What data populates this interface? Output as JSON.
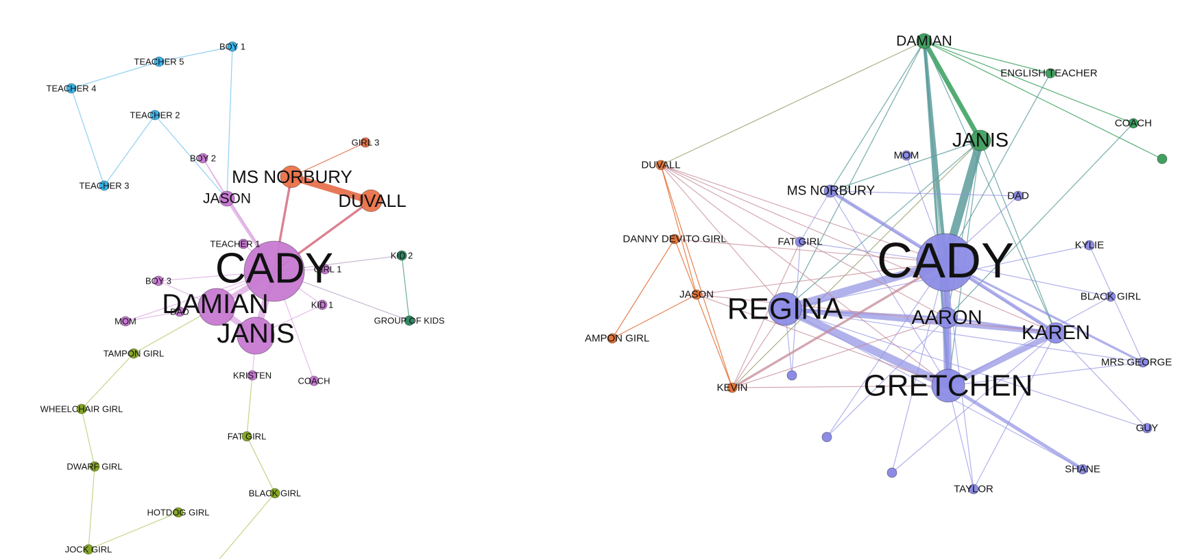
{
  "colors": {
    "teacher": "#3ab4ea",
    "cady": "#c77ad2",
    "norbury": "#ea7248",
    "kids": "#2f8a63",
    "girls": "#86a825",
    "right_main": "#8c8ce6",
    "right_top": "#40a060",
    "right_orange": "#e5763a"
  },
  "left_network": {
    "nodes": [
      {
        "id": "L_BOY1",
        "label": "BOY 1",
        "group": "teacher",
        "weight": 1
      },
      {
        "id": "L_T5",
        "label": "TEACHER 5",
        "group": "teacher",
        "weight": 1
      },
      {
        "id": "L_T4",
        "label": "TEACHER 4",
        "group": "teacher",
        "weight": 1
      },
      {
        "id": "L_T2",
        "label": "TEACHER 2",
        "group": "teacher",
        "weight": 1
      },
      {
        "id": "L_T3",
        "label": "TEACHER 3",
        "group": "teacher",
        "weight": 1
      },
      {
        "id": "L_BOY2",
        "label": "BOY 2",
        "group": "cady",
        "weight": 1
      },
      {
        "id": "L_GIRL3",
        "label": "GIRL 3",
        "group": "norbury",
        "weight": 1
      },
      {
        "id": "L_NORB",
        "label": "MS NORBURY",
        "group": "norbury",
        "weight": 4
      },
      {
        "id": "L_DUV",
        "label": "DUVALL",
        "group": "norbury",
        "weight": 4
      },
      {
        "id": "L_JASON",
        "label": "JASON",
        "group": "cady",
        "weight": 3
      },
      {
        "id": "L_T1",
        "label": "TEACHER 1",
        "group": "cady",
        "weight": 1
      },
      {
        "id": "L_CADY",
        "label": "CADY",
        "group": "cady",
        "weight": 10
      },
      {
        "id": "L_GIRL1",
        "label": "GIRL 1",
        "group": "cady",
        "weight": 1
      },
      {
        "id": "L_KID2",
        "label": "KID 2",
        "group": "kids",
        "weight": 1
      },
      {
        "id": "L_BOY3",
        "label": "BOY 3",
        "group": "cady",
        "weight": 1
      },
      {
        "id": "L_DAMIAN",
        "label": "DAMIAN",
        "group": "cady",
        "weight": 6
      },
      {
        "id": "L_DAD",
        "label": "DAD",
        "group": "cady",
        "weight": 1
      },
      {
        "id": "L_KID1",
        "label": "KID 1",
        "group": "cady",
        "weight": 1
      },
      {
        "id": "L_MOM",
        "label": "MOM",
        "group": "cady",
        "weight": 1
      },
      {
        "id": "L_GOK",
        "label": "GROUP OF KIDS",
        "group": "kids",
        "weight": 1
      },
      {
        "id": "L_JANIS",
        "label": "JANIS",
        "group": "cady",
        "weight": 6
      },
      {
        "id": "L_TAMPON",
        "label": "TAMPON GIRL",
        "group": "girls",
        "weight": 1
      },
      {
        "id": "L_KRISTEN",
        "label": "KRISTEN",
        "group": "cady",
        "weight": 1
      },
      {
        "id": "L_COACH",
        "label": "COACH",
        "group": "cady",
        "weight": 1
      },
      {
        "id": "L_WHEEL",
        "label": "WHEELCHAIR GIRL",
        "group": "girls",
        "weight": 1
      },
      {
        "id": "L_FAT",
        "label": "FAT GIRL",
        "group": "girls",
        "weight": 1
      },
      {
        "id": "L_DWARF",
        "label": "DWARF GIRL",
        "group": "girls",
        "weight": 1
      },
      {
        "id": "L_BLACK",
        "label": "BLACK GIRL",
        "group": "girls",
        "weight": 1
      },
      {
        "id": "L_HOTDOG",
        "label": "HOTDOG GIRL",
        "group": "girls",
        "weight": 1
      },
      {
        "id": "L_JOCK",
        "label": "JOCK GIRL",
        "group": "girls",
        "weight": 1
      }
    ],
    "edges": [
      {
        "s": "L_BOY1",
        "t": "L_T5",
        "w": 1,
        "group": "teacher"
      },
      {
        "s": "L_T5",
        "t": "L_T4",
        "w": 1,
        "group": "teacher"
      },
      {
        "s": "L_T4",
        "t": "L_T3",
        "w": 1,
        "group": "teacher"
      },
      {
        "s": "L_T3",
        "t": "L_T2",
        "w": 1,
        "group": "teacher"
      },
      {
        "s": "L_T2",
        "t": "L_JASON",
        "w": 1,
        "group": "teacher"
      },
      {
        "s": "L_BOY1",
        "t": "L_JASON",
        "w": 1,
        "group": "teacher"
      },
      {
        "s": "L_BOY2",
        "t": "L_JASON",
        "w": 1,
        "group": "cady"
      },
      {
        "s": "L_BOY2",
        "t": "L_CADY",
        "w": 1,
        "group": "cady"
      },
      {
        "s": "L_JASON",
        "t": "L_CADY",
        "w": 3,
        "group": "cady"
      },
      {
        "s": "L_T1",
        "t": "L_CADY",
        "w": 1,
        "group": "cady"
      },
      {
        "s": "L_GIRL3",
        "t": "L_NORB",
        "w": 1,
        "group": "norbury"
      },
      {
        "s": "L_NORB",
        "t": "L_DUV",
        "w": 6,
        "group": "norbury"
      },
      {
        "s": "L_NORB",
        "t": "L_CADY",
        "w": 2,
        "group": "norbury_cady"
      },
      {
        "s": "L_DUV",
        "t": "L_CADY",
        "w": 2,
        "group": "norbury_cady"
      },
      {
        "s": "L_CADY",
        "t": "L_GIRL1",
        "w": 1,
        "group": "cady"
      },
      {
        "s": "L_CADY",
        "t": "L_KID2",
        "w": 1,
        "group": "kids_cady"
      },
      {
        "s": "L_CADY",
        "t": "L_GOK",
        "w": 1,
        "group": "kids_cady"
      },
      {
        "s": "L_KID2",
        "t": "L_GOK",
        "w": 1,
        "group": "kids"
      },
      {
        "s": "L_CADY",
        "t": "L_KID1",
        "w": 1,
        "group": "cady"
      },
      {
        "s": "L_BOY3",
        "t": "L_CADY",
        "w": 1,
        "group": "cady"
      },
      {
        "s": "L_BOY3",
        "t": "L_DAMIAN",
        "w": 1,
        "group": "cady"
      },
      {
        "s": "L_DAMIAN",
        "t": "L_CADY",
        "w": 5,
        "group": "cady"
      },
      {
        "s": "L_JANIS",
        "t": "L_CADY",
        "w": 6,
        "group": "cady"
      },
      {
        "s": "L_DAMIAN",
        "t": "L_JANIS",
        "w": 5,
        "group": "cady"
      },
      {
        "s": "L_DAD",
        "t": "L_CADY",
        "w": 1,
        "group": "cady"
      },
      {
        "s": "L_MOM",
        "t": "L_DAD",
        "w": 1,
        "group": "cady"
      },
      {
        "s": "L_MOM",
        "t": "L_CADY",
        "w": 1,
        "group": "cady"
      },
      {
        "s": "L_JANIS",
        "t": "L_KRISTEN",
        "w": 1,
        "group": "cady"
      },
      {
        "s": "L_CADY",
        "t": "L_COACH",
        "w": 1,
        "group": "cady"
      },
      {
        "s": "L_JANIS",
        "t": "L_KID1",
        "w": 1,
        "group": "cady"
      },
      {
        "s": "L_TAMPON",
        "t": "L_DAMIAN",
        "w": 1,
        "group": "girls"
      },
      {
        "s": "L_TAMPON",
        "t": "L_WHEEL",
        "w": 1,
        "group": "girls"
      },
      {
        "s": "L_WHEEL",
        "t": "L_DWARF",
        "w": 1,
        "group": "girls"
      },
      {
        "s": "L_DWARF",
        "t": "L_JOCK",
        "w": 1,
        "group": "girls"
      },
      {
        "s": "L_JOCK",
        "t": "L_HOTDOG",
        "w": 1,
        "group": "girls"
      },
      {
        "s": "L_KRISTEN",
        "t": "L_FAT",
        "w": 1,
        "group": "girls"
      },
      {
        "s": "L_FAT",
        "t": "L_BLACK",
        "w": 1,
        "group": "girls"
      },
      {
        "s": "L_BLACK",
        "t": "L_OFF",
        "w": 1,
        "group": "girls"
      }
    ]
  },
  "right_network": {
    "nodes": [
      {
        "id": "R_DAMIAN",
        "label": "DAMIAN",
        "group": "right_top",
        "weight": 3
      },
      {
        "id": "R_ENG",
        "label": "ENGLISH TEACHER",
        "group": "right_top",
        "weight": 1
      },
      {
        "id": "R_COACH",
        "label": "COACH",
        "group": "right_top",
        "weight": 1
      },
      {
        "id": "R_GREEN",
        "label": "",
        "group": "right_top",
        "weight": 1
      },
      {
        "id": "R_JANIS",
        "label": "JANIS",
        "group": "right_top",
        "weight": 4
      },
      {
        "id": "R_MOM",
        "label": "MOM",
        "group": "right_main",
        "weight": 1
      },
      {
        "id": "R_DUV",
        "label": "DUVALL",
        "group": "right_orange",
        "weight": 1
      },
      {
        "id": "R_NORB",
        "label": "MS NORBURY",
        "group": "right_main",
        "weight": 2
      },
      {
        "id": "R_DAD",
        "label": "DAD",
        "group": "right_main",
        "weight": 1
      },
      {
        "id": "R_DDG",
        "label": "DANNY DEVITO GIRL",
        "group": "right_orange",
        "weight": 1
      },
      {
        "id": "R_FAT",
        "label": "FAT GIRL",
        "group": "right_main",
        "weight": 1
      },
      {
        "id": "R_CADY",
        "label": "CADY",
        "group": "right_main",
        "weight": 10
      },
      {
        "id": "R_KYLIE",
        "label": "KYLIE",
        "group": "right_main",
        "weight": 1
      },
      {
        "id": "R_JASON",
        "label": "JASON",
        "group": "right_orange",
        "weight": 1
      },
      {
        "id": "R_BLACK",
        "label": "BLACK GIRL",
        "group": "right_main",
        "weight": 1
      },
      {
        "id": "R_REGINA",
        "label": "REGINA",
        "group": "right_main",
        "weight": 6
      },
      {
        "id": "R_AARON",
        "label": "AARON",
        "group": "right_main",
        "weight": 4
      },
      {
        "id": "R_KAREN",
        "label": "KAREN",
        "group": "right_main",
        "weight": 4
      },
      {
        "id": "R_TAMPON",
        "label": "AMPON GIRL",
        "group": "right_orange",
        "weight": 1
      },
      {
        "id": "R_MRSG",
        "label": "MRS GEORGE",
        "group": "right_main",
        "weight": 1
      },
      {
        "id": "R_U1",
        "label": "",
        "group": "right_main",
        "weight": 1
      },
      {
        "id": "R_KEVIN",
        "label": "KEVIN",
        "group": "right_orange",
        "weight": 1
      },
      {
        "id": "R_GRETCHEN",
        "label": "GRETCHEN",
        "group": "right_main",
        "weight": 6
      },
      {
        "id": "R_U2",
        "label": "",
        "group": "right_main",
        "weight": 1
      },
      {
        "id": "R_GUY",
        "label": "GUY",
        "group": "right_main",
        "weight": 1
      },
      {
        "id": "R_U3",
        "label": "",
        "group": "right_main",
        "weight": 1
      },
      {
        "id": "R_SHANE",
        "label": "SHANE",
        "group": "right_main",
        "weight": 1
      },
      {
        "id": "R_TAYLOR",
        "label": "TAYLOR",
        "group": "right_main",
        "weight": 1
      }
    ],
    "edges": [
      {
        "s": "R_DAMIAN",
        "t": "R_ENG",
        "w": 1,
        "group": "right_top"
      },
      {
        "s": "R_DAMIAN",
        "t": "R_COACH",
        "w": 1,
        "group": "right_top"
      },
      {
        "s": "R_DAMIAN",
        "t": "R_GREEN",
        "w": 1,
        "group": "right_top"
      },
      {
        "s": "R_DAMIAN",
        "t": "R_JANIS",
        "w": 4,
        "group": "right_top"
      },
      {
        "s": "R_DAMIAN",
        "t": "R_CADY",
        "w": 3,
        "group": "teal"
      },
      {
        "s": "R_DAMIAN",
        "t": "R_DUV",
        "w": 1,
        "group": "olive"
      },
      {
        "s": "R_DAMIAN",
        "t": "R_NORB",
        "w": 1,
        "group": "teal"
      },
      {
        "s": "R_DAMIAN",
        "t": "R_REGINA",
        "w": 1,
        "group": "teal"
      },
      {
        "s": "R_DAMIAN",
        "t": "R_AARON",
        "w": 1,
        "group": "teal"
      },
      {
        "s": "R_DAMIAN",
        "t": "R_GRETCHEN",
        "w": 2,
        "group": "teal"
      },
      {
        "s": "R_DAMIAN",
        "t": "R_KAREN",
        "w": 1,
        "group": "teal"
      },
      {
        "s": "R_JANIS",
        "t": "R_CADY",
        "w": 7,
        "group": "teal"
      },
      {
        "s": "R_JANIS",
        "t": "R_NORB",
        "w": 1,
        "group": "teal"
      },
      {
        "s": "R_JANIS",
        "t": "R_KEVIN",
        "w": 1,
        "group": "olive"
      },
      {
        "s": "R_JANIS",
        "t": "R_REGINA",
        "w": 1,
        "group": "teal"
      },
      {
        "s": "R_JANIS",
        "t": "R_AARON",
        "w": 1,
        "group": "teal"
      },
      {
        "s": "R_JANIS",
        "t": "R_KAREN",
        "w": 1,
        "group": "teal"
      },
      {
        "s": "R_JANIS",
        "t": "R_GRETCHEN",
        "w": 1,
        "group": "teal"
      },
      {
        "s": "R_ENG",
        "t": "R_CADY",
        "w": 1,
        "group": "teal"
      },
      {
        "s": "R_COACH",
        "t": "R_AARON",
        "w": 1,
        "group": "teal"
      },
      {
        "s": "R_MOM",
        "t": "R_CADY",
        "w": 1,
        "group": "right_main"
      },
      {
        "s": "R_DAD",
        "t": "R_CADY",
        "w": 1,
        "group": "right_main"
      },
      {
        "s": "R_NORB",
        "t": "R_DAD",
        "w": 1,
        "group": "right_main"
      },
      {
        "s": "R_NORB",
        "t": "R_CADY",
        "w": 3,
        "group": "right_main"
      },
      {
        "s": "R_NORB",
        "t": "R_GRETCHEN",
        "w": 1,
        "group": "right_main"
      },
      {
        "s": "R_NORB",
        "t": "R_KAREN",
        "w": 1,
        "group": "right_main"
      },
      {
        "s": "R_NORB",
        "t": "R_FAT",
        "w": 1,
        "group": "right_main"
      },
      {
        "s": "R_FAT",
        "t": "R_CADY",
        "w": 1,
        "group": "right_main"
      },
      {
        "s": "R_FAT",
        "t": "R_U1",
        "w": 1,
        "group": "right_main"
      },
      {
        "s": "R_KYLIE",
        "t": "R_REGINA",
        "w": 1,
        "group": "right_main"
      },
      {
        "s": "R_KYLIE",
        "t": "R_MRSG",
        "w": 1,
        "group": "right_main"
      },
      {
        "s": "R_BLACK",
        "t": "R_CADY",
        "w": 1,
        "group": "right_main"
      },
      {
        "s": "R_BLACK",
        "t": "R_GRETCHEN",
        "w": 1,
        "group": "right_main"
      },
      {
        "s": "R_CADY",
        "t": "R_REGINA",
        "w": 7,
        "group": "right_main"
      },
      {
        "s": "R_CADY",
        "t": "R_AARON",
        "w": 4,
        "group": "right_main"
      },
      {
        "s": "R_CADY",
        "t": "R_KAREN",
        "w": 3,
        "group": "right_main"
      },
      {
        "s": "R_CADY",
        "t": "R_GRETCHEN",
        "w": 7,
        "group": "right_main"
      },
      {
        "s": "R_CADY",
        "t": "R_MRSG",
        "w": 2,
        "group": "right_main"
      },
      {
        "s": "R_CADY",
        "t": "R_U2",
        "w": 1,
        "group": "right_main"
      },
      {
        "s": "R_CADY",
        "t": "R_U3",
        "w": 1,
        "group": "right_main"
      },
      {
        "s": "R_CADY",
        "t": "R_TAYLOR",
        "w": 1,
        "group": "right_main"
      },
      {
        "s": "R_REGINA",
        "t": "R_GRETCHEN",
        "w": 7,
        "group": "right_main"
      },
      {
        "s": "R_REGINA",
        "t": "R_KAREN",
        "w": 4,
        "group": "right_main"
      },
      {
        "s": "R_REGINA",
        "t": "R_AARON",
        "w": 2,
        "group": "right_main"
      },
      {
        "s": "R_REGINA",
        "t": "R_MRSG",
        "w": 1,
        "group": "right_main"
      },
      {
        "s": "R_REGINA",
        "t": "R_GUY",
        "w": 1,
        "group": "right_main"
      },
      {
        "s": "R_REGINA",
        "t": "R_SHANE",
        "w": 1,
        "group": "right_main"
      },
      {
        "s": "R_REGINA",
        "t": "R_U1",
        "w": 1,
        "group": "right_main"
      },
      {
        "s": "R_GRETCHEN",
        "t": "R_KAREN",
        "w": 5,
        "group": "right_main"
      },
      {
        "s": "R_GRETCHEN",
        "t": "R_SHANE",
        "w": 3,
        "group": "right_main"
      },
      {
        "s": "R_GRETCHEN",
        "t": "R_MRSG",
        "w": 1,
        "group": "right_main"
      },
      {
        "s": "R_GRETCHEN",
        "t": "R_TAYLOR",
        "w": 1,
        "group": "right_main"
      },
      {
        "s": "R_KAREN",
        "t": "R_GUY",
        "w": 1,
        "group": "right_main"
      },
      {
        "s": "R_KAREN",
        "t": "R_TAYLOR",
        "w": 1,
        "group": "right_main"
      },
      {
        "s": "R_AARON",
        "t": "R_GRETCHEN",
        "w": 3,
        "group": "right_main"
      },
      {
        "s": "R_AARON",
        "t": "R_KAREN",
        "w": 2,
        "group": "right_main"
      },
      {
        "s": "R_AARON",
        "t": "R_U2",
        "w": 1,
        "group": "right_main"
      },
      {
        "s": "R_KAREN",
        "t": "R_U3",
        "w": 1,
        "group": "right_main"
      },
      {
        "s": "R_DUV",
        "t": "R_CADY",
        "w": 1,
        "group": "mauve"
      },
      {
        "s": "R_DUV",
        "t": "R_REGINA",
        "w": 1,
        "group": "mauve"
      },
      {
        "s": "R_DUV",
        "t": "R_AARON",
        "w": 1,
        "group": "mauve"
      },
      {
        "s": "R_DUV",
        "t": "R_GRETCHEN",
        "w": 1,
        "group": "mauve"
      },
      {
        "s": "R_DUV",
        "t": "R_KAREN",
        "w": 1,
        "group": "mauve"
      },
      {
        "s": "R_DUV",
        "t": "R_JASON",
        "w": 1,
        "group": "right_orange"
      },
      {
        "s": "R_DUV",
        "t": "R_KEVIN",
        "w": 1,
        "group": "right_orange"
      },
      {
        "s": "R_DDG",
        "t": "R_CADY",
        "w": 1,
        "group": "mauve"
      },
      {
        "s": "R_DDG",
        "t": "R_TAMPON",
        "w": 1,
        "group": "right_orange"
      },
      {
        "s": "R_DDG",
        "t": "R_KEVIN",
        "w": 1,
        "group": "right_orange"
      },
      {
        "s": "R_JASON",
        "t": "R_TAMPON",
        "w": 1,
        "group": "right_orange"
      },
      {
        "s": "R_JASON",
        "t": "R_CADY",
        "w": 1,
        "group": "mauve"
      },
      {
        "s": "R_JASON",
        "t": "R_KAREN",
        "w": 1,
        "group": "mauve"
      },
      {
        "s": "R_JASON",
        "t": "R_GRETCHEN",
        "w": 1,
        "group": "mauve"
      },
      {
        "s": "R_KEVIN",
        "t": "R_CADY",
        "w": 2,
        "group": "mauve"
      },
      {
        "s": "R_KEVIN",
        "t": "R_REGINA",
        "w": 1,
        "group": "mauve"
      },
      {
        "s": "R_KEVIN",
        "t": "R_AARON",
        "w": 1,
        "group": "mauve"
      },
      {
        "s": "R_KEVIN",
        "t": "R_GRETCHEN",
        "w": 1,
        "group": "mauve"
      },
      {
        "s": "R_KEVIN",
        "t": "R_FAT",
        "w": 1,
        "group": "mauve"
      }
    ]
  }
}
